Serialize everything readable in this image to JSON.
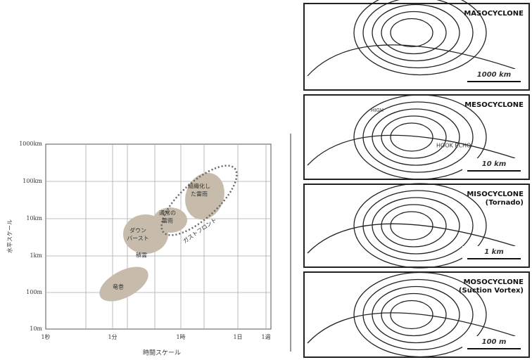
{
  "scale_chart": {
    "y_axis_title": "水平スケール",
    "x_axis_title": "時間スケール",
    "y_labels": [
      "1000km",
      "100km",
      "10km",
      "1km",
      "100m",
      "10m"
    ],
    "x_labels": [
      "1秒",
      "1分",
      "1時",
      "1日",
      "1週"
    ],
    "regions": [
      {
        "lines": [
          "竜巻"
        ]
      },
      {
        "lines": [
          "積雲"
        ]
      },
      {
        "lines": [
          "ダウン",
          "バースト"
        ]
      },
      {
        "lines": [
          "通常の",
          "雷雨"
        ]
      },
      {
        "lines": [
          "組織化し",
          "た雷雨"
        ]
      },
      {
        "lines": [
          "ガストフロント"
        ]
      }
    ]
  },
  "panels": [
    {
      "title": [
        "MASOCYCLONE"
      ],
      "scale": "1000 km"
    },
    {
      "title": [
        "MESOCYCLONE"
      ],
      "scale": "10 km",
      "notes": [
        "HIGH",
        "HOOK ECHO"
      ]
    },
    {
      "title": [
        "MISOCYCLONE",
        "(Tornado)"
      ],
      "scale": "1 km"
    },
    {
      "title": [
        "MOSOCYCLONE",
        "(Suction Vortex)"
      ],
      "scale": "100 m"
    }
  ]
}
